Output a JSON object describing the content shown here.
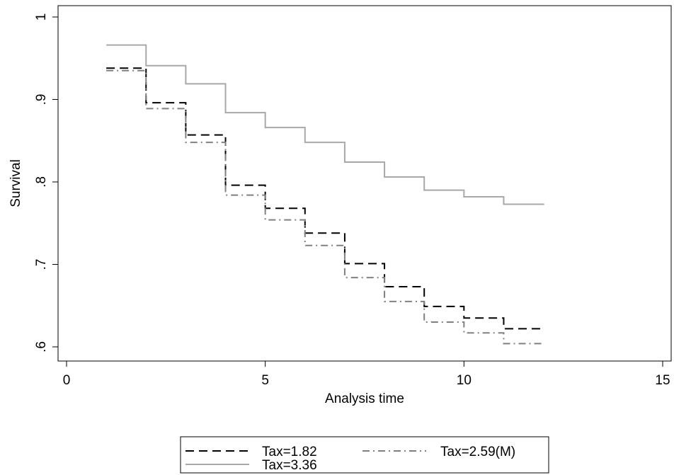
{
  "chart_data": {
    "type": "line",
    "step": true,
    "xlabel": "Analysis time",
    "ylabel": "Survival",
    "xlim": [
      0,
      15
    ],
    "ylim": [
      0.6,
      1.0
    ],
    "x_ticks": [
      0,
      5,
      10,
      15
    ],
    "x_tick_labels": [
      "0",
      "5",
      "10",
      "15"
    ],
    "y_ticks": [
      0.6,
      0.7,
      0.8,
      0.9,
      1.0
    ],
    "y_tick_labels": [
      ".6",
      ".7",
      ".8",
      ".9",
      "1"
    ],
    "grid": false,
    "legend_position": "bottom",
    "x": [
      1,
      2,
      3,
      4,
      5,
      6,
      7,
      8,
      9,
      10,
      11,
      12
    ],
    "series": [
      {
        "name": "Tax=1.82",
        "style": "dashed",
        "color": "#000000",
        "values": [
          0.938,
          0.896,
          0.857,
          0.796,
          0.768,
          0.738,
          0.701,
          0.673,
          0.649,
          0.635,
          0.622,
          0.622
        ]
      },
      {
        "name": "Tax=2.59(M)",
        "style": "dash-dot",
        "color": "#808080",
        "values": [
          0.935,
          0.889,
          0.848,
          0.784,
          0.754,
          0.723,
          0.684,
          0.655,
          0.63,
          0.617,
          0.604,
          0.604
        ]
      },
      {
        "name": "Tax=3.36",
        "style": "solid",
        "color": "#a8a8a8",
        "values": [
          0.966,
          0.941,
          0.919,
          0.884,
          0.866,
          0.848,
          0.824,
          0.806,
          0.79,
          0.782,
          0.773,
          0.772
        ]
      }
    ]
  }
}
